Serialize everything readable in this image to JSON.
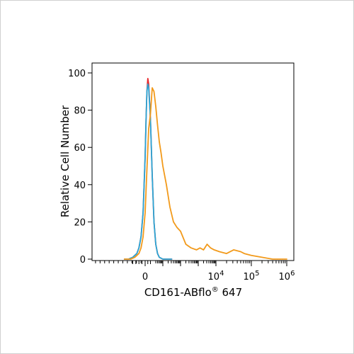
{
  "chart_data": {
    "type": "line",
    "title": "",
    "xlabel": "CD161-ABflo",
    "xlabel_sup": "®",
    "xlabel_suffix": " 647",
    "ylabel": "Relative Cell Number",
    "ylim": [
      0,
      100
    ],
    "y_ticks": [
      0,
      20,
      40,
      60,
      80,
      100
    ],
    "x_scale": "biexponential",
    "x_ticks": [
      {
        "base": "0",
        "exp": ""
      },
      {
        "base": "10",
        "exp": "4"
      },
      {
        "base": "10",
        "exp": "5"
      },
      {
        "base": "10",
        "exp": "6"
      }
    ],
    "series": [
      {
        "color": "#e8272b",
        "x": [
          -1.0,
          -0.8,
          -0.6,
          -0.4,
          -0.3,
          -0.2,
          -0.1,
          0.0,
          0.05,
          0.1,
          0.15,
          0.2,
          0.3,
          0.4,
          0.5,
          0.6,
          0.7,
          0.8,
          1.0,
          1.2,
          1.5
        ],
        "y": [
          0,
          0,
          1,
          3,
          6,
          12,
          25,
          55,
          75,
          90,
          97,
          94,
          75,
          45,
          20,
          8,
          3,
          1,
          0,
          0,
          0
        ]
      },
      {
        "color": "#29a8d8",
        "x": [
          -1.0,
          -0.8,
          -0.6,
          -0.4,
          -0.3,
          -0.2,
          -0.1,
          0.0,
          0.05,
          0.1,
          0.15,
          0.2,
          0.3,
          0.4,
          0.5,
          0.6,
          0.7,
          0.8,
          1.0,
          1.2,
          1.5
        ],
        "y": [
          0,
          0,
          1,
          3,
          6,
          12,
          25,
          55,
          75,
          90,
          94,
          92,
          75,
          45,
          20,
          8,
          3,
          1,
          0,
          0,
          0
        ]
      },
      {
        "color": "#f29a1b",
        "x": [
          -1.0,
          -0.7,
          -0.5,
          -0.3,
          -0.2,
          -0.1,
          0.0,
          0.1,
          0.2,
          0.3,
          0.4,
          0.5,
          0.6,
          0.7,
          0.8,
          0.9,
          1.0,
          1.2,
          1.4,
          1.6,
          1.8,
          2.0,
          2.3,
          2.6,
          2.9,
          3.1,
          3.3,
          3.5,
          3.7,
          3.9,
          4.1,
          4.3,
          4.5,
          4.7,
          4.8,
          5.0,
          5.3,
          5.6,
          6.0
        ],
        "y": [
          0,
          0,
          1,
          3,
          6,
          12,
          25,
          48,
          70,
          78,
          92,
          90,
          82,
          72,
          63,
          57,
          50,
          40,
          28,
          20,
          17,
          15,
          8,
          6,
          5,
          6,
          5,
          8,
          6,
          5,
          4,
          3,
          5,
          4,
          3,
          2,
          1,
          0,
          0
        ]
      }
    ]
  }
}
